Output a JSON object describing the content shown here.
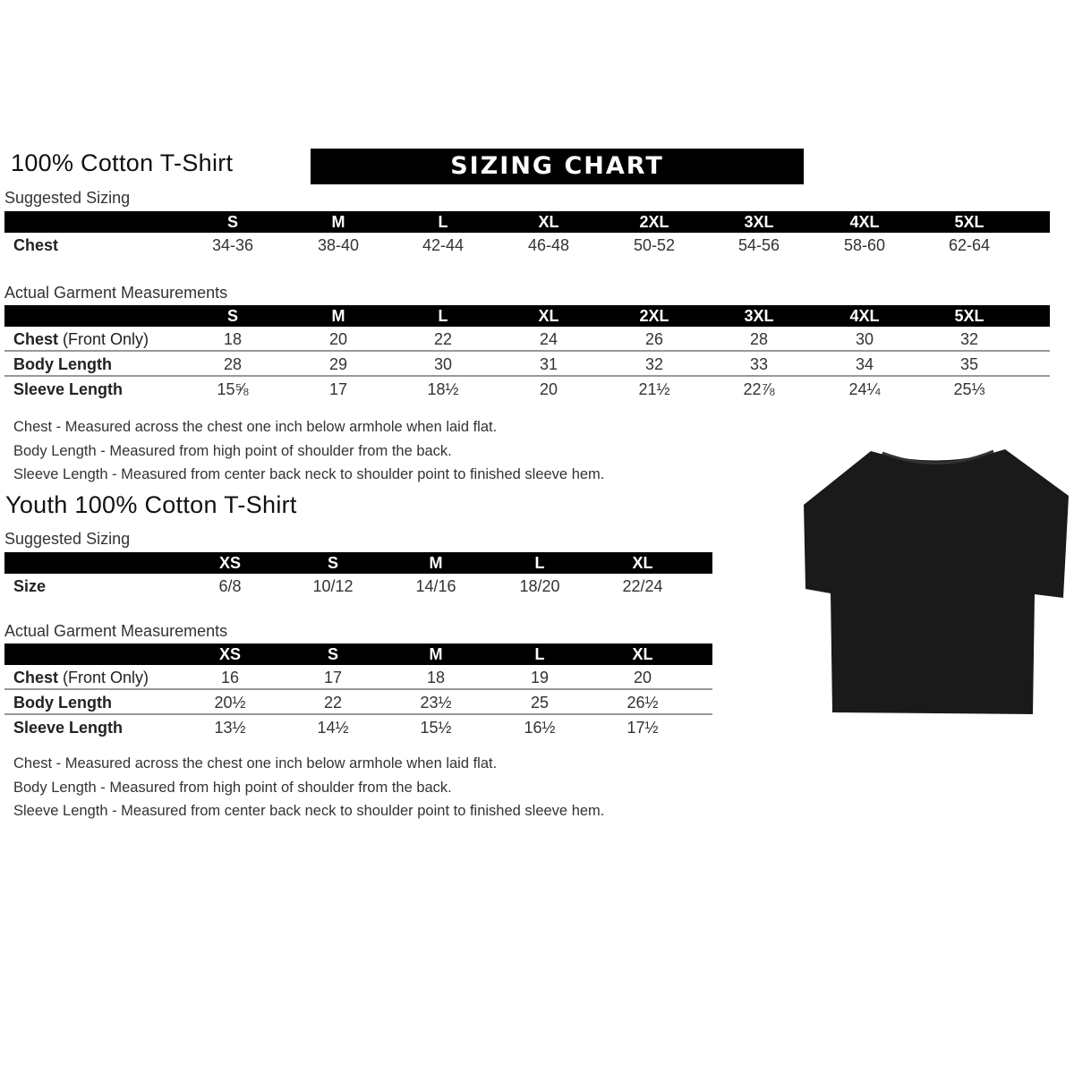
{
  "adult": {
    "title": "100% Cotton T-Shirt",
    "banner": "SIZING CHART",
    "suggested_label": "Suggested Sizing",
    "sizes": [
      "S",
      "M",
      "L",
      "XL",
      "2XL",
      "3XL",
      "4XL",
      "5XL"
    ],
    "suggested_rows": [
      {
        "label": "Chest",
        "values": [
          "34-36",
          "38-40",
          "42-44",
          "46-48",
          "50-52",
          "54-56",
          "58-60",
          "62-64"
        ]
      }
    ],
    "actual_label": "Actual Garment Measurements",
    "actual_rows": [
      {
        "label": "Chest",
        "label_note": " (Front Only)",
        "values": [
          "18",
          "20",
          "22",
          "24",
          "26",
          "28",
          "30",
          "32"
        ]
      },
      {
        "label": "Body Length",
        "values": [
          "28",
          "29",
          "30",
          "31",
          "32",
          "33",
          "34",
          "35"
        ]
      },
      {
        "label": "Sleeve Length",
        "values": [
          "15⅝",
          "17",
          "18½",
          "20",
          "21½",
          "22⅞",
          "24¼",
          "25⅓"
        ]
      }
    ],
    "notes": [
      "Chest - Measured across the chest one inch below armhole when laid flat.",
      "Body Length - Measured from high point of shoulder from the back.",
      "Sleeve Length - Measured from center back neck to shoulder point to finished sleeve hem."
    ]
  },
  "youth": {
    "title": "Youth 100% Cotton T-Shirt",
    "suggested_label": "Suggested Sizing",
    "sizes": [
      "XS",
      "S",
      "M",
      "L",
      "XL"
    ],
    "suggested_rows": [
      {
        "label": "Size",
        "values": [
          "6/8",
          "10/12",
          "14/16",
          "18/20",
          "22/24"
        ]
      }
    ],
    "actual_label": "Actual Garment Measurements",
    "actual_rows": [
      {
        "label": "Chest",
        "label_note": " (Front Only)",
        "values": [
          "16",
          "17",
          "18",
          "19",
          "20"
        ]
      },
      {
        "label": "Body Length",
        "values": [
          "20½",
          "22",
          "23½",
          "25",
          "26½"
        ]
      },
      {
        "label": "Sleeve Length",
        "values": [
          "13½",
          "14½",
          "15½",
          "16½",
          "17½"
        ]
      }
    ],
    "notes": [
      "Chest - Measured across the chest one inch below armhole when laid flat.",
      "Body Length - Measured from high point of shoulder from the back.",
      "Sleeve Length - Measured from center back neck to shoulder point to finished sleeve hem."
    ]
  },
  "image": {
    "icon": "tshirt-icon",
    "color": "#1a1a1a"
  }
}
